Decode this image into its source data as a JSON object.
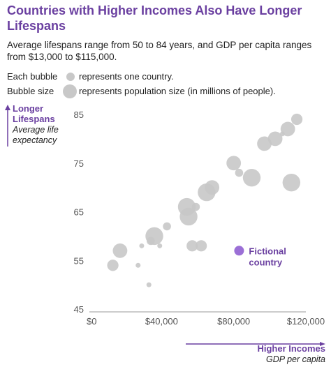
{
  "title": "Countries with Higher Incomes Also Have Longer Lifespans",
  "subtitle": "Average lifespans range from 50 to 84 years, and GDP per capita ranges from $13,000 to $115,000.",
  "legend": {
    "each_label": "Each bubble",
    "each_desc": "represents one country.",
    "size_label": "Bubble size",
    "size_desc": "represents population size (in millions of people)."
  },
  "y_axis_label": {
    "strong_line1": "Longer",
    "strong_line2": "Lifespans",
    "italic_line1": "Average life",
    "italic_line2": "expectancy"
  },
  "x_axis_label": {
    "strong": "Higher Incomes",
    "italic": "GDP per capita"
  },
  "colors": {
    "accent": "#6a3fa0",
    "bubble": "#c8c8c8",
    "highlight": "#9b6fd6",
    "axis": "#999999"
  },
  "chart_data": {
    "type": "scatter",
    "title": "Countries with Higher Incomes Also Have Longer Lifespans",
    "xlabel": "GDP per capita",
    "ylabel": "Average life expectancy",
    "xlim": [
      0,
      120000
    ],
    "ylim": [
      45,
      85
    ],
    "x_ticks": [
      0,
      40000,
      80000,
      120000
    ],
    "x_tick_labels": [
      "$0",
      "$40,000",
      "$80,000",
      "$120,000"
    ],
    "y_ticks": [
      45,
      55,
      65,
      75,
      85
    ],
    "y_tick_labels": [
      "45",
      "55",
      "65",
      "75",
      "85"
    ],
    "grid": false,
    "points": [
      {
        "x": 13000,
        "y": 54,
        "size": 3
      },
      {
        "x": 17000,
        "y": 57,
        "size": 4
      },
      {
        "x": 27000,
        "y": 54,
        "size": 1
      },
      {
        "x": 29000,
        "y": 58,
        "size": 1
      },
      {
        "x": 33000,
        "y": 50,
        "size": 1
      },
      {
        "x": 34000,
        "y": 59,
        "size": 2
      },
      {
        "x": 36000,
        "y": 60,
        "size": 5
      },
      {
        "x": 39000,
        "y": 58,
        "size": 1
      },
      {
        "x": 43000,
        "y": 62,
        "size": 2
      },
      {
        "x": 54000,
        "y": 66,
        "size": 5
      },
      {
        "x": 55000,
        "y": 64,
        "size": 5
      },
      {
        "x": 57000,
        "y": 58,
        "size": 3
      },
      {
        "x": 59000,
        "y": 66,
        "size": 2
      },
      {
        "x": 62000,
        "y": 58,
        "size": 3
      },
      {
        "x": 65000,
        "y": 69,
        "size": 5
      },
      {
        "x": 68000,
        "y": 70,
        "size": 4
      },
      {
        "x": 80000,
        "y": 75,
        "size": 4
      },
      {
        "x": 83000,
        "y": 73,
        "size": 2
      },
      {
        "x": 90000,
        "y": 72,
        "size": 5
      },
      {
        "x": 97000,
        "y": 79,
        "size": 4
      },
      {
        "x": 103000,
        "y": 80,
        "size": 4
      },
      {
        "x": 107000,
        "y": 81,
        "size": 1
      },
      {
        "x": 110000,
        "y": 82,
        "size": 4
      },
      {
        "x": 112000,
        "y": 71,
        "size": 5
      },
      {
        "x": 115000,
        "y": 84,
        "size": 3
      }
    ],
    "highlight": {
      "label_line1": "Fictional",
      "label_line2": "country",
      "x": 83000,
      "y": 57
    }
  }
}
